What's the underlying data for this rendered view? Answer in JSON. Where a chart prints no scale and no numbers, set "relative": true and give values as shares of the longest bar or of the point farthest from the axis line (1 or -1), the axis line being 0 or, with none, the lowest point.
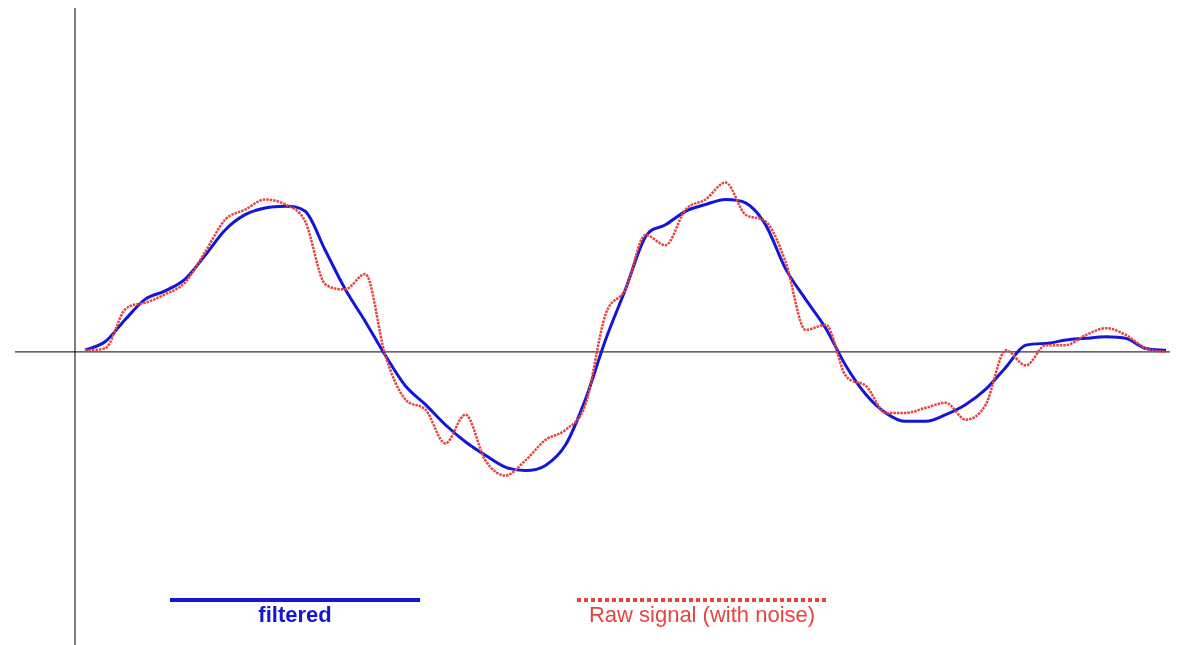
{
  "chart_data": {
    "type": "line",
    "relative": true,
    "legend": "bottom",
    "marker": "none",
    "grid": false,
    "tick_labels": false,
    "categories": [
      null,
      null,
      null,
      null,
      null,
      null,
      null,
      null,
      null,
      null,
      null,
      null,
      null,
      null,
      null,
      null,
      null,
      null,
      null,
      null,
      null,
      null,
      null,
      null,
      null,
      null,
      null,
      null,
      null,
      null,
      null,
      null,
      null,
      null,
      null,
      null,
      null,
      null,
      null,
      null,
      null,
      null,
      null,
      null,
      null,
      null,
      null,
      null,
      null,
      null,
      null,
      null,
      null,
      null,
      null
    ],
    "series": [
      {
        "name": "filtered",
        "color": "#1515d8",
        "line_style": "solid",
        "values": [
          0.01,
          0.06,
          0.19,
          0.31,
          0.36,
          0.43,
          0.57,
          0.72,
          0.81,
          0.85,
          0.86,
          0.83,
          0.6,
          0.37,
          0.18,
          -0.02,
          -0.2,
          -0.31,
          -0.43,
          -0.53,
          -0.61,
          -0.68,
          -0.7,
          -0.67,
          -0.55,
          -0.28,
          0.07,
          0.37,
          0.68,
          0.75,
          0.83,
          0.87,
          0.9,
          0.88,
          0.75,
          0.49,
          0.31,
          0.14,
          -0.08,
          -0.25,
          -0.36,
          -0.41,
          -0.41,
          -0.37,
          -0.31,
          -0.22,
          -0.09,
          0.04,
          0.05,
          0.07,
          0.08,
          0.09,
          0.08,
          0.02,
          0.01
        ]
      },
      {
        "name": "Raw signal (with noise)",
        "color": "#e8443e",
        "line_style": "dotted",
        "values": [
          0.01,
          0.02,
          0.25,
          0.29,
          0.34,
          0.41,
          0.59,
          0.78,
          0.84,
          0.9,
          0.87,
          0.77,
          0.4,
          0.37,
          0.46,
          -0.02,
          -0.28,
          -0.34,
          -0.54,
          -0.37,
          -0.64,
          -0.73,
          -0.64,
          -0.52,
          -0.46,
          -0.31,
          0.22,
          0.37,
          0.69,
          0.63,
          0.84,
          0.9,
          1,
          0.81,
          0.77,
          0.53,
          0.13,
          0.16,
          -0.14,
          -0.2,
          -0.36,
          -0.36,
          -0.33,
          -0.3,
          -0.4,
          -0.31,
          0.01,
          -0.08,
          0.04,
          0.04,
          0.1,
          0.14,
          0.1,
          0.02,
          0
        ]
      }
    ]
  }
}
